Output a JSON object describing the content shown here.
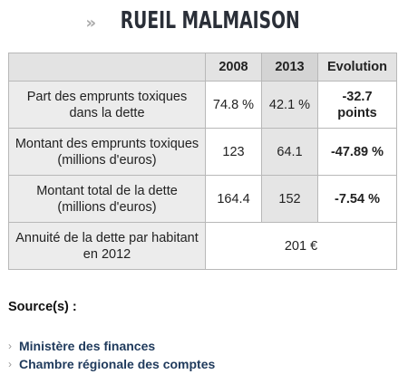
{
  "header": {
    "arrows": "»",
    "title": "RUEIL MALMAISON"
  },
  "table": {
    "columns": [
      "2008",
      "2013",
      "Evolution"
    ],
    "rows": [
      {
        "label": "Part des emprunts toxiques dans la dette",
        "v2008": "74.8 %",
        "v2013": "42.1 %",
        "evolution": "-32.7 points"
      },
      {
        "label": "Montant des emprunts toxiques (millions d'euros)",
        "v2008": "123",
        "v2013": "64.1",
        "evolution": "-47.89 %"
      },
      {
        "label": "Montant total de la dette (millions d'euros)",
        "v2008": "164.4",
        "v2013": "152",
        "evolution": "-7.54 %"
      }
    ],
    "annuity": {
      "label": "Annuité de la dette par habitant en 2012",
      "value": "201 €"
    }
  },
  "sources": {
    "title": "Source(s) :",
    "chevron": "›",
    "links": [
      "Ministère des finances",
      "Chambre régionale des comptes"
    ]
  }
}
